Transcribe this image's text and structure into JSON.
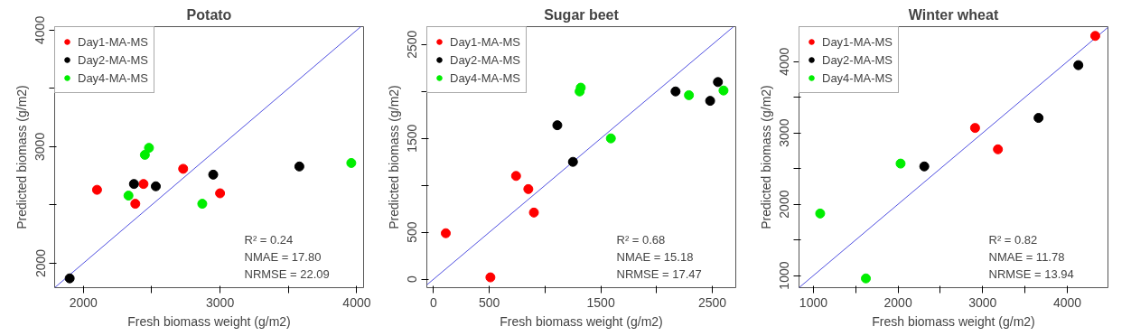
{
  "chart_data": [
    {
      "type": "scatter",
      "title": "Potato",
      "xlabel": "Fresh biomass weight (g/m2)",
      "ylabel": "Predicted biomass (g/m2)",
      "xlim": [
        1790,
        4050
      ],
      "ylim": [
        1790,
        4030
      ],
      "xticks": [
        2000,
        {
          "value": 2500,
          "label": null
        },
        3000,
        {
          "value": 3500,
          "label": null
        },
        4000
      ],
      "yticks": [
        2000,
        {
          "value": 2500,
          "label": null
        },
        3000,
        {
          "value": 3500,
          "label": null
        },
        4000
      ],
      "grid": false,
      "legend": "top left",
      "marker": "circle",
      "annotations": [
        "R² = 0.24",
        "NMAE = 17.80",
        "NRMSE = 22.09"
      ],
      "series": [
        {
          "type": "line",
          "marker": "none",
          "color": "#5050e0",
          "x": [
            1790,
            4030
          ],
          "values": [
            1790,
            4030
          ]
        },
        {
          "name": "Day1-MA-MS",
          "color": "#ff0000",
          "x": [
            2100,
            2440,
            2380,
            2730,
            3000
          ],
          "values": [
            2630,
            2680,
            2510,
            2810,
            2600
          ]
        },
        {
          "name": "Day2-MA-MS",
          "color": "#000000",
          "x": [
            1900,
            2370,
            2530,
            2950,
            3580
          ],
          "values": [
            1870,
            2680,
            2660,
            2760,
            2830
          ]
        },
        {
          "name": "Day4-MA-MS",
          "color": "#00ee00",
          "x": [
            2480,
            2450,
            2330,
            2870,
            3960
          ],
          "values": [
            2990,
            2930,
            2580,
            2510,
            2860
          ]
        }
      ]
    },
    {
      "type": "scatter",
      "title": "Sugar beet",
      "xlabel": "Fresh biomass weight (g/m2)",
      "ylabel": "Predicted biomass (g/m2)",
      "xlim": [
        -60,
        2710
      ],
      "ylim": [
        -90,
        2690
      ],
      "xticks": [
        0,
        500,
        {
          "value": 1000,
          "label": null
        },
        1500,
        {
          "value": 2000,
          "label": null
        },
        2500
      ],
      "yticks": [
        0,
        500,
        {
          "value": 1000,
          "label": null
        },
        1500,
        {
          "value": 2000,
          "label": null
        },
        2500
      ],
      "grid": false,
      "legend": "top left",
      "marker": "circle",
      "annotations": [
        "R² = 0.68",
        "NMAE = 15.18",
        "NRMSE = 17.47"
      ],
      "series": [
        {
          "type": "line",
          "marker": "none",
          "color": "#5050e0",
          "x": [
            -60,
            2690
          ],
          "values": [
            -60,
            2690
          ]
        },
        {
          "name": "Day1-MA-MS",
          "color": "#ff0000",
          "x": [
            110,
            510,
            740,
            850,
            900
          ],
          "values": [
            490,
            20,
            1100,
            960,
            710
          ]
        },
        {
          "name": "Day2-MA-MS",
          "color": "#000000",
          "x": [
            1110,
            1250,
            2170,
            2480,
            2550
          ],
          "values": [
            1640,
            1250,
            2000,
            1900,
            2100
          ]
        },
        {
          "name": "Day4-MA-MS",
          "color": "#00ee00",
          "x": [
            1320,
            1310,
            1590,
            2290,
            2600
          ],
          "values": [
            2040,
            2000,
            1500,
            1960,
            2010
          ]
        }
      ]
    },
    {
      "type": "scatter",
      "title": "Winter wheat",
      "xlabel": "Fresh biomass weight (g/m2)",
      "ylabel": "Predicted biomass (g/m2)",
      "xlim": [
        830,
        4480
      ],
      "ylim": [
        830,
        4490
      ],
      "xticks": [
        1000,
        {
          "value": 1500,
          "label": null
        },
        2000,
        {
          "value": 2500,
          "label": null
        },
        3000,
        {
          "value": 3500,
          "label": null
        },
        4000
      ],
      "yticks": [
        1000,
        {
          "value": 1500,
          "label": null
        },
        2000,
        {
          "value": 2500,
          "label": null
        },
        3000,
        {
          "value": 3500,
          "label": null
        },
        4000
      ],
      "grid": false,
      "legend": "top left",
      "marker": "circle",
      "annotations": [
        "R² = 0.82",
        "NMAE = 11.78",
        "NRMSE = 13.94"
      ],
      "series": [
        {
          "type": "line",
          "marker": "none",
          "color": "#5050e0",
          "x": [
            830,
            4480
          ],
          "values": [
            830,
            4480
          ]
        },
        {
          "name": "Day1-MA-MS",
          "color": "#ff0000",
          "x": [
            4330,
            2910,
            3180
          ],
          "values": [
            4360,
            3070,
            2770
          ]
        },
        {
          "name": "Day2-MA-MS",
          "color": "#000000",
          "x": [
            4130,
            3660,
            2310
          ],
          "values": [
            3950,
            3210,
            2530
          ]
        },
        {
          "name": "Day4-MA-MS",
          "color": "#00ee00",
          "x": [
            2030,
            1080,
            1620
          ],
          "values": [
            2570,
            1870,
            960
          ]
        }
      ]
    }
  ]
}
